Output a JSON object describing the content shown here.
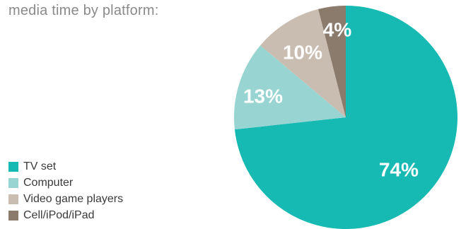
{
  "chart_data": {
    "type": "pie",
    "title": "media time by platform:",
    "categories": [
      "TV set",
      "Computer",
      "Video game players",
      "Cell/iPod/iPad"
    ],
    "values": [
      74,
      13,
      10,
      4
    ],
    "labels": [
      "74%",
      "13%",
      "10%",
      "4%"
    ],
    "colors": [
      "#17bab3",
      "#97d4d2",
      "#c9bdb1",
      "#8a7b6d"
    ],
    "legend_position": "bottom-left",
    "start": "top, clockwise"
  }
}
